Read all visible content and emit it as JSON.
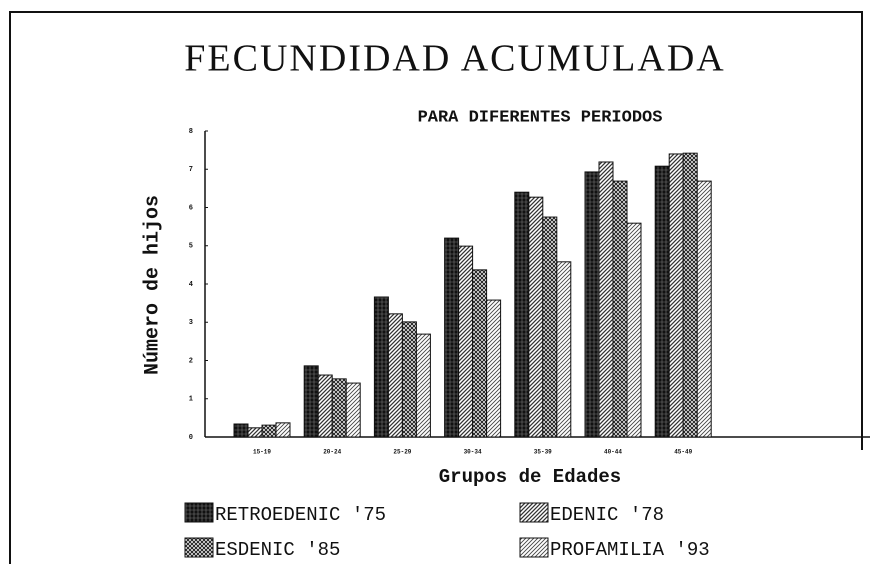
{
  "chart_data": {
    "type": "bar",
    "title": "FECUNDIDAD ACUMULADA",
    "subtitle": "PARA DIFERENTES PERIODOS",
    "y_label": "Número de hijos",
    "x_label": "Grupos de Edades",
    "categories": [
      "15-19",
      "20-24",
      "25-29",
      "30-34",
      "35-39",
      "40-44",
      "45-49"
    ],
    "series": [
      {
        "name": "RETROEDENIC '75",
        "color": "#111111",
        "values": [
          0.34,
          1.86,
          3.66,
          5.2,
          6.4,
          6.93,
          7.08
        ]
      },
      {
        "name": "EDENIC '78",
        "color": "#333333",
        "values": [
          0.24,
          1.62,
          3.22,
          4.99,
          6.27,
          7.19,
          7.4
        ]
      },
      {
        "name": "ESDENIC '85",
        "color": "#222222",
        "values": [
          0.31,
          1.52,
          3.01,
          4.37,
          5.75,
          6.69,
          7.42
        ]
      },
      {
        "name": "PROFAMILIA '93",
        "color": "#444444",
        "values": [
          0.37,
          1.41,
          2.69,
          3.58,
          4.58,
          5.59,
          6.69
        ]
      }
    ],
    "ylim": [
      0,
      8
    ],
    "yticks": [
      0,
      1,
      2,
      3,
      4,
      5,
      6,
      7,
      8
    ],
    "grid": false
  }
}
